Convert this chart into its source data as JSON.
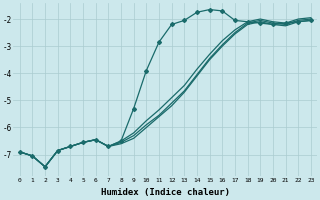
{
  "xlabel": "Humidex (Indice chaleur)",
  "background_color": "#cce8ec",
  "grid_color": "#aaccd0",
  "line_color": "#1a6b6b",
  "xlim": [
    -0.5,
    23.5
  ],
  "ylim": [
    -7.8,
    -1.4
  ],
  "yticks": [
    -7,
    -6,
    -5,
    -4,
    -3,
    -2
  ],
  "xticks": [
    0,
    1,
    2,
    3,
    4,
    5,
    6,
    7,
    8,
    9,
    10,
    11,
    12,
    13,
    14,
    15,
    16,
    17,
    18,
    19,
    20,
    21,
    22,
    23
  ],
  "line1_x": [
    0,
    1,
    2,
    3,
    4,
    5,
    6,
    7,
    8,
    9,
    10,
    11,
    12,
    13,
    14,
    15,
    16,
    17,
    18,
    19,
    20,
    21,
    22,
    23
  ],
  "line1_y": [
    -6.9,
    -7.05,
    -7.45,
    -6.85,
    -6.7,
    -6.55,
    -6.45,
    -6.7,
    -6.5,
    -5.3,
    -3.9,
    -2.85,
    -2.2,
    -2.05,
    -1.75,
    -1.65,
    -1.7,
    -2.05,
    -2.1,
    -2.15,
    -2.2,
    -2.15,
    -2.1,
    -2.05
  ],
  "line2_x": [
    0,
    1,
    2,
    3,
    4,
    5,
    6,
    7,
    8,
    9,
    10,
    11,
    12,
    13,
    14,
    15,
    16,
    17,
    18,
    19,
    20,
    21,
    22,
    23
  ],
  "line2_y": [
    -6.9,
    -7.05,
    -7.45,
    -6.85,
    -6.7,
    -6.55,
    -6.45,
    -6.7,
    -6.6,
    -6.4,
    -6.0,
    -5.6,
    -5.2,
    -4.7,
    -4.1,
    -3.5,
    -3.0,
    -2.55,
    -2.2,
    -2.1,
    -2.2,
    -2.25,
    -2.1,
    -2.05
  ],
  "line3_x": [
    0,
    1,
    2,
    3,
    4,
    5,
    6,
    7,
    8,
    9,
    10,
    11,
    12,
    13,
    14,
    15,
    16,
    17,
    18,
    19,
    20,
    21,
    22,
    23
  ],
  "line3_y": [
    -6.9,
    -7.05,
    -7.45,
    -6.85,
    -6.7,
    -6.55,
    -6.45,
    -6.7,
    -6.55,
    -6.3,
    -5.9,
    -5.55,
    -5.1,
    -4.65,
    -4.05,
    -3.45,
    -2.95,
    -2.5,
    -2.15,
    -2.05,
    -2.15,
    -2.2,
    -2.05,
    -2.0
  ],
  "line4_x": [
    0,
    1,
    2,
    3,
    4,
    5,
    6,
    7,
    8,
    9,
    10,
    11,
    12,
    13,
    14,
    15,
    16,
    17,
    18,
    19,
    20,
    21,
    22,
    23
  ],
  "line4_y": [
    -6.9,
    -7.05,
    -7.45,
    -6.85,
    -6.7,
    -6.55,
    -6.45,
    -6.7,
    -6.5,
    -6.2,
    -5.75,
    -5.35,
    -4.9,
    -4.45,
    -3.85,
    -3.3,
    -2.8,
    -2.4,
    -2.1,
    -2.0,
    -2.1,
    -2.15,
    -2.0,
    -1.95
  ]
}
